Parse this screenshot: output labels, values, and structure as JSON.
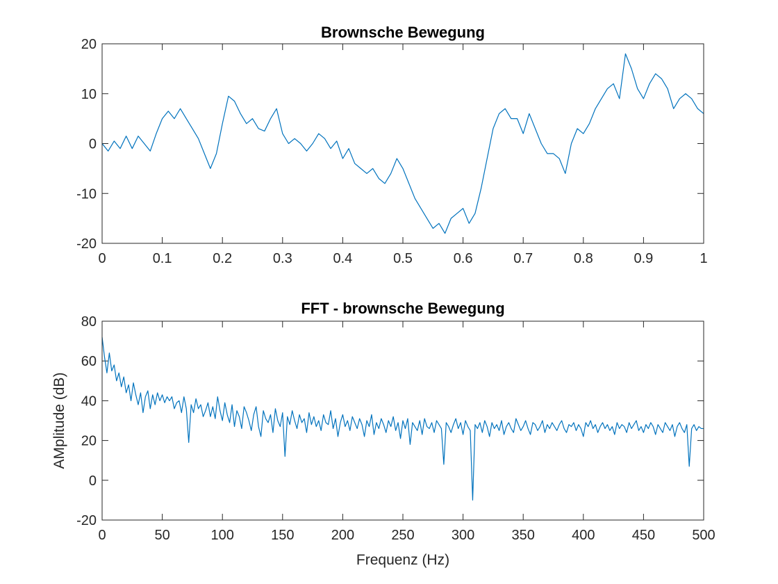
{
  "figure": {
    "background": "#ffffff",
    "axis_color": "#262626",
    "line_color": "#0072BD"
  },
  "chart_data": [
    {
      "type": "line",
      "title": "Brownsche Bewegung",
      "xlabel": "",
      "ylabel": "",
      "xlim": [
        0,
        1
      ],
      "ylim": [
        -20,
        20
      ],
      "xticks": [
        0,
        0.1,
        0.2,
        0.3,
        0.4,
        0.5,
        0.6,
        0.7,
        0.8,
        0.9,
        1
      ],
      "xtick_labels": [
        "0",
        "0.1",
        "0.2",
        "0.3",
        "0.4",
        "0.5",
        "0.6",
        "0.7",
        "0.8",
        "0.9",
        "1"
      ],
      "yticks": [
        -20,
        -10,
        0,
        10,
        20
      ],
      "ytick_labels": [
        "-20",
        "-10",
        "0",
        "10",
        "20"
      ],
      "grid": false,
      "legend": "none",
      "series": [
        {
          "color": "#0072BD",
          "x": [
            0,
            0.01,
            0.02,
            0.03,
            0.04,
            0.05,
            0.06,
            0.07,
            0.08,
            0.09,
            0.1,
            0.11,
            0.12,
            0.13,
            0.14,
            0.15,
            0.16,
            0.17,
            0.18,
            0.19,
            0.2,
            0.21,
            0.22,
            0.23,
            0.24,
            0.25,
            0.26,
            0.27,
            0.28,
            0.29,
            0.3,
            0.31,
            0.32,
            0.33,
            0.34,
            0.35,
            0.36,
            0.37,
            0.38,
            0.39,
            0.4,
            0.41,
            0.42,
            0.43,
            0.44,
            0.45,
            0.46,
            0.47,
            0.48,
            0.49,
            0.5,
            0.51,
            0.52,
            0.53,
            0.54,
            0.55,
            0.56,
            0.57,
            0.58,
            0.59,
            0.6,
            0.61,
            0.62,
            0.63,
            0.64,
            0.65,
            0.66,
            0.67,
            0.68,
            0.69,
            0.7,
            0.71,
            0.72,
            0.73,
            0.74,
            0.75,
            0.76,
            0.77,
            0.78,
            0.79,
            0.8,
            0.81,
            0.82,
            0.83,
            0.84,
            0.85,
            0.86,
            0.87,
            0.88,
            0.89,
            0.9,
            0.91,
            0.92,
            0.93,
            0.94,
            0.95,
            0.96,
            0.97,
            0.98,
            0.99,
            1
          ],
          "y": [
            0,
            -1.5,
            0.5,
            -1,
            1.5,
            -1,
            1.5,
            0,
            -1.5,
            2,
            5,
            6.5,
            5,
            7,
            5,
            3,
            1,
            -2,
            -5,
            -2,
            4,
            9.5,
            8.5,
            6,
            4,
            5,
            3,
            2.5,
            5,
            7,
            2,
            0,
            1,
            0,
            -1.5,
            0,
            2,
            1,
            -1,
            0.5,
            -3,
            -1,
            -4,
            -5,
            -6,
            -5,
            -7,
            -8,
            -6,
            -3,
            -5,
            -8,
            -11,
            -13,
            -15,
            -17,
            -16,
            -18,
            -15,
            -14,
            -13,
            -16,
            -14,
            -9,
            -3,
            3,
            6,
            7,
            5,
            5,
            2,
            6,
            3,
            0,
            -2,
            -2,
            -3,
            -6,
            0,
            3,
            2,
            4,
            7,
            9,
            11,
            12,
            9,
            18,
            15,
            11,
            9,
            12,
            14,
            13,
            11,
            7,
            9,
            10,
            9,
            7,
            6
          ]
        }
      ]
    },
    {
      "type": "line",
      "title": "FFT - brownsche Bewegung",
      "xlabel": "Frequenz (Hz)",
      "ylabel": "AMplitude (dB)",
      "xlim": [
        0,
        500
      ],
      "ylim": [
        -20,
        80
      ],
      "xticks": [
        0,
        50,
        100,
        150,
        200,
        250,
        300,
        350,
        400,
        450,
        500
      ],
      "xtick_labels": [
        "0",
        "50",
        "100",
        "150",
        "200",
        "250",
        "300",
        "350",
        "400",
        "450",
        "500"
      ],
      "yticks": [
        -20,
        0,
        20,
        40,
        60,
        80
      ],
      "ytick_labels": [
        "-20",
        "0",
        "20",
        "40",
        "60",
        "80"
      ],
      "grid": false,
      "legend": "none",
      "series": [
        {
          "color": "#0072BD",
          "x": [
            0,
            2,
            4,
            6,
            8,
            10,
            12,
            14,
            16,
            18,
            20,
            22,
            24,
            26,
            28,
            30,
            32,
            34,
            36,
            38,
            40,
            42,
            44,
            46,
            48,
            50,
            52,
            54,
            56,
            58,
            60,
            62,
            64,
            66,
            68,
            70,
            72,
            74,
            76,
            78,
            80,
            82,
            84,
            86,
            88,
            90,
            92,
            94,
            96,
            98,
            100,
            102,
            104,
            106,
            108,
            110,
            112,
            114,
            116,
            118,
            120,
            122,
            124,
            126,
            128,
            130,
            132,
            134,
            136,
            138,
            140,
            142,
            144,
            146,
            148,
            150,
            152,
            154,
            156,
            158,
            160,
            162,
            164,
            166,
            168,
            170,
            172,
            174,
            176,
            178,
            180,
            182,
            184,
            186,
            188,
            190,
            192,
            194,
            196,
            198,
            200,
            202,
            204,
            206,
            208,
            210,
            212,
            214,
            216,
            218,
            220,
            222,
            224,
            226,
            228,
            230,
            232,
            234,
            236,
            238,
            240,
            242,
            244,
            246,
            248,
            250,
            252,
            254,
            256,
            258,
            260,
            262,
            264,
            266,
            268,
            270,
            272,
            274,
            276,
            278,
            280,
            282,
            284,
            286,
            288,
            290,
            292,
            294,
            296,
            298,
            300,
            302,
            304,
            306,
            308,
            310,
            312,
            314,
            316,
            318,
            320,
            322,
            324,
            326,
            328,
            330,
            332,
            334,
            336,
            338,
            340,
            342,
            344,
            346,
            348,
            350,
            352,
            354,
            356,
            358,
            360,
            362,
            364,
            366,
            368,
            370,
            372,
            374,
            376,
            378,
            380,
            382,
            384,
            386,
            388,
            390,
            392,
            394,
            396,
            398,
            400,
            402,
            404,
            406,
            408,
            410,
            412,
            414,
            416,
            418,
            420,
            422,
            424,
            426,
            428,
            430,
            432,
            434,
            436,
            438,
            440,
            442,
            444,
            446,
            448,
            450,
            452,
            454,
            456,
            458,
            460,
            462,
            464,
            466,
            468,
            470,
            472,
            474,
            476,
            478,
            480,
            482,
            484,
            486,
            488,
            490,
            492,
            494,
            496,
            498,
            500
          ],
          "y": [
            72,
            62,
            54,
            64,
            55,
            58,
            50,
            54,
            47,
            52,
            44,
            48,
            40,
            49,
            43,
            38,
            44,
            34,
            42,
            45,
            36,
            43,
            38,
            44,
            40,
            43,
            39,
            42,
            40,
            42,
            36,
            39,
            40,
            34,
            42,
            36,
            19,
            38,
            34,
            41,
            36,
            38,
            32,
            35,
            39,
            32,
            37,
            31,
            42,
            35,
            30,
            39,
            33,
            29,
            38,
            27,
            35,
            32,
            26,
            37,
            34,
            30,
            25,
            33,
            37,
            27,
            22,
            35,
            31,
            29,
            33,
            24,
            36,
            30,
            27,
            34,
            12,
            32,
            28,
            35,
            30,
            26,
            33,
            29,
            31,
            24,
            34,
            28,
            32,
            27,
            30,
            25,
            33,
            29,
            28,
            35,
            26,
            31,
            22,
            29,
            33,
            27,
            30,
            25,
            32,
            29,
            26,
            31,
            28,
            22,
            30,
            27,
            33,
            23,
            29,
            26,
            31,
            28,
            24,
            30,
            27,
            32,
            25,
            29,
            21,
            30,
            26,
            31,
            18,
            29,
            27,
            25,
            30,
            23,
            31,
            27,
            26,
            29,
            24,
            30,
            28,
            26,
            8,
            29,
            27,
            24,
            28,
            31,
            26,
            29,
            23,
            30,
            27,
            25,
            -10,
            28,
            26,
            29,
            24,
            30,
            27,
            22,
            29,
            26,
            28,
            25,
            30,
            23,
            27,
            29,
            26,
            24,
            31,
            28,
            25,
            27,
            30,
            26,
            23,
            29,
            28,
            25,
            27,
            30,
            24,
            28,
            26,
            29,
            27,
            25,
            28,
            30,
            26,
            24,
            28,
            27,
            29,
            25,
            28,
            26,
            22,
            29,
            27,
            30,
            26,
            28,
            24,
            27,
            29,
            26,
            28,
            25,
            27,
            23,
            29,
            26,
            28,
            27,
            24,
            29,
            26,
            28,
            30,
            25,
            27,
            24,
            28,
            26,
            29,
            27,
            23,
            28,
            26,
            24,
            29,
            27,
            25,
            28,
            22,
            27,
            29,
            26,
            24,
            28,
            7,
            26,
            28,
            25,
            27,
            26,
            26
          ]
        }
      ]
    }
  ]
}
